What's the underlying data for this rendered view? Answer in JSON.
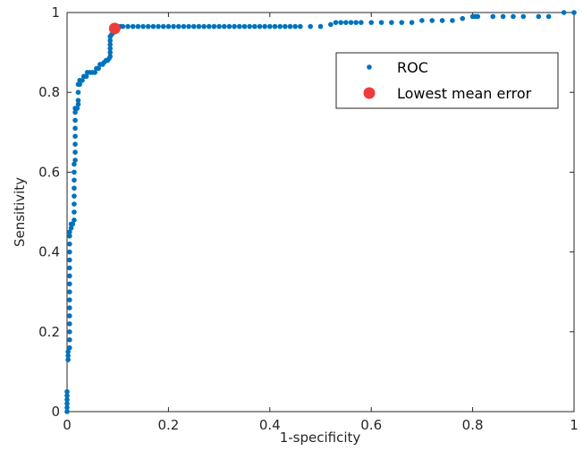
{
  "chart_data": {
    "type": "scatter",
    "xlabel": "1-specificity",
    "ylabel": "Sensitivity",
    "xlim": [
      0,
      1
    ],
    "ylim": [
      0,
      1
    ],
    "xticks": [
      "0",
      "0.2",
      "0.4",
      "0.6",
      "0.8",
      "1"
    ],
    "yticks": [
      "0",
      "0.2",
      "0.4",
      "0.6",
      "0.8",
      "1"
    ],
    "grid": false,
    "legend_position": "top-right",
    "colors": {
      "roc": "#0072BD",
      "best": "#EE3B3B"
    },
    "series": [
      {
        "name": "ROC",
        "marker": "dot",
        "points": [
          [
            0,
            0.0
          ],
          [
            0,
            0.01
          ],
          [
            0,
            0.02
          ],
          [
            0,
            0.03
          ],
          [
            0,
            0.04
          ],
          [
            0,
            0.05
          ],
          [
            0.002,
            0.13
          ],
          [
            0.002,
            0.14
          ],
          [
            0.002,
            0.15
          ],
          [
            0.005,
            0.16
          ],
          [
            0.005,
            0.18
          ],
          [
            0.005,
            0.2
          ],
          [
            0.005,
            0.22
          ],
          [
            0.005,
            0.24
          ],
          [
            0.005,
            0.26
          ],
          [
            0.005,
            0.28
          ],
          [
            0.005,
            0.3
          ],
          [
            0.005,
            0.32
          ],
          [
            0.005,
            0.34
          ],
          [
            0.005,
            0.36
          ],
          [
            0.005,
            0.38
          ],
          [
            0.005,
            0.4
          ],
          [
            0.005,
            0.42
          ],
          [
            0.005,
            0.44
          ],
          [
            0.005,
            0.45
          ],
          [
            0.008,
            0.46
          ],
          [
            0.008,
            0.47
          ],
          [
            0.011,
            0.47
          ],
          [
            0.014,
            0.48
          ],
          [
            0.014,
            0.5
          ],
          [
            0.014,
            0.52
          ],
          [
            0.014,
            0.54
          ],
          [
            0.014,
            0.56
          ],
          [
            0.014,
            0.58
          ],
          [
            0.014,
            0.6
          ],
          [
            0.014,
            0.62
          ],
          [
            0.016,
            0.63
          ],
          [
            0.016,
            0.65
          ],
          [
            0.016,
            0.67
          ],
          [
            0.016,
            0.69
          ],
          [
            0.016,
            0.71
          ],
          [
            0.016,
            0.73
          ],
          [
            0.016,
            0.75
          ],
          [
            0.016,
            0.76
          ],
          [
            0.02,
            0.76
          ],
          [
            0.022,
            0.77
          ],
          [
            0.022,
            0.78
          ],
          [
            0.022,
            0.8
          ],
          [
            0.022,
            0.82
          ],
          [
            0.025,
            0.82
          ],
          [
            0.025,
            0.83
          ],
          [
            0.03,
            0.83
          ],
          [
            0.033,
            0.84
          ],
          [
            0.038,
            0.84
          ],
          [
            0.04,
            0.85
          ],
          [
            0.045,
            0.85
          ],
          [
            0.05,
            0.85
          ],
          [
            0.055,
            0.85
          ],
          [
            0.058,
            0.86
          ],
          [
            0.062,
            0.86
          ],
          [
            0.065,
            0.87
          ],
          [
            0.07,
            0.87
          ],
          [
            0.073,
            0.875
          ],
          [
            0.077,
            0.88
          ],
          [
            0.08,
            0.88
          ],
          [
            0.083,
            0.885
          ],
          [
            0.085,
            0.89
          ],
          [
            0.085,
            0.9
          ],
          [
            0.085,
            0.91
          ],
          [
            0.085,
            0.92
          ],
          [
            0.085,
            0.93
          ],
          [
            0.085,
            0.94
          ],
          [
            0.088,
            0.945
          ],
          [
            0.092,
            0.95
          ],
          [
            0.096,
            0.955
          ],
          [
            0.1,
            0.96
          ],
          [
            0.1,
            0.965
          ],
          [
            0.105,
            0.965
          ],
          [
            0.11,
            0.965
          ],
          [
            0.12,
            0.965
          ],
          [
            0.13,
            0.965
          ],
          [
            0.14,
            0.965
          ],
          [
            0.15,
            0.965
          ],
          [
            0.16,
            0.965
          ],
          [
            0.17,
            0.965
          ],
          [
            0.18,
            0.965
          ],
          [
            0.19,
            0.965
          ],
          [
            0.2,
            0.965
          ],
          [
            0.21,
            0.965
          ],
          [
            0.22,
            0.965
          ],
          [
            0.23,
            0.965
          ],
          [
            0.24,
            0.965
          ],
          [
            0.25,
            0.965
          ],
          [
            0.26,
            0.965
          ],
          [
            0.27,
            0.965
          ],
          [
            0.28,
            0.965
          ],
          [
            0.29,
            0.965
          ],
          [
            0.3,
            0.965
          ],
          [
            0.31,
            0.965
          ],
          [
            0.32,
            0.965
          ],
          [
            0.33,
            0.965
          ],
          [
            0.34,
            0.965
          ],
          [
            0.35,
            0.965
          ],
          [
            0.36,
            0.965
          ],
          [
            0.37,
            0.965
          ],
          [
            0.38,
            0.965
          ],
          [
            0.39,
            0.965
          ],
          [
            0.4,
            0.965
          ],
          [
            0.41,
            0.965
          ],
          [
            0.42,
            0.965
          ],
          [
            0.43,
            0.965
          ],
          [
            0.44,
            0.965
          ],
          [
            0.45,
            0.965
          ],
          [
            0.46,
            0.965
          ],
          [
            0.48,
            0.965
          ],
          [
            0.5,
            0.965
          ],
          [
            0.52,
            0.97
          ],
          [
            0.53,
            0.975
          ],
          [
            0.54,
            0.975
          ],
          [
            0.55,
            0.975
          ],
          [
            0.56,
            0.975
          ],
          [
            0.57,
            0.975
          ],
          [
            0.58,
            0.975
          ],
          [
            0.6,
            0.975
          ],
          [
            0.62,
            0.975
          ],
          [
            0.64,
            0.975
          ],
          [
            0.66,
            0.975
          ],
          [
            0.68,
            0.975
          ],
          [
            0.7,
            0.98
          ],
          [
            0.72,
            0.98
          ],
          [
            0.74,
            0.98
          ],
          [
            0.76,
            0.98
          ],
          [
            0.78,
            0.985
          ],
          [
            0.8,
            0.99
          ],
          [
            0.805,
            0.99
          ],
          [
            0.81,
            0.99
          ],
          [
            0.84,
            0.99
          ],
          [
            0.86,
            0.99
          ],
          [
            0.88,
            0.99
          ],
          [
            0.9,
            0.99
          ],
          [
            0.93,
            0.99
          ],
          [
            0.95,
            0.99
          ],
          [
            0.98,
            1.0
          ],
          [
            1.0,
            1.0
          ]
        ]
      },
      {
        "name": "Lowest mean error",
        "marker": "large-dot",
        "points": [
          [
            0.094,
            0.96
          ]
        ]
      }
    ]
  }
}
